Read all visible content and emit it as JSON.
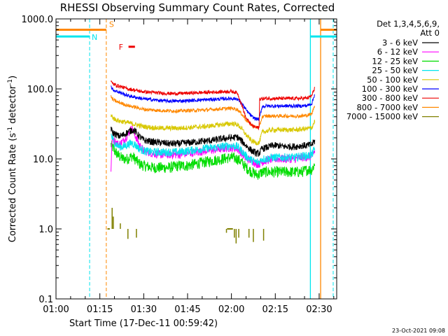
{
  "chart_data": {
    "type": "line",
    "title": "RHESSI Observing Summary Count Rates, Corrected",
    "xlabel": "Start Time (17-Dec-11 00:59:42)",
    "ylabel_main": "Corrected Count Rate (s",
    "ylabel_sup1": "-1",
    "ylabel_mid": " detector",
    "ylabel_sup2": "-1",
    "ylabel_end": ")",
    "x_unit": "minutes after 01:00",
    "xlim": [
      0,
      96
    ],
    "ylim": [
      0.1,
      1000
    ],
    "y_scale": "log",
    "x_ticks": [
      {
        "value": 0,
        "label": "01:00"
      },
      {
        "value": 15,
        "label": "01:15"
      },
      {
        "value": 30,
        "label": "01:30"
      },
      {
        "value": 45,
        "label": "01:45"
      },
      {
        "value": 60,
        "label": "02:00"
      },
      {
        "value": 75,
        "label": "02:15"
      },
      {
        "value": 90,
        "label": "02:30"
      }
    ],
    "y_ticks": [
      {
        "value": 0.1,
        "label": "0.1"
      },
      {
        "value": 1,
        "label": "1.0"
      },
      {
        "value": 10,
        "label": "10.0"
      },
      {
        "value": 100,
        "label": "100.0"
      },
      {
        "value": 1000,
        "label": "1000.0"
      }
    ],
    "legend": {
      "placement": "right",
      "header1": "Det 1,3,4,5,6,9,",
      "header2": "Att 0",
      "entries": [
        {
          "label": "3 - 6 keV",
          "color": "#000000"
        },
        {
          "label": "6 - 12 keV",
          "color": "#ff00ff"
        },
        {
          "label": "12 - 25 keV",
          "color": "#00dd00"
        },
        {
          "label": "25 - 50 keV",
          "color": "#00e5ee"
        },
        {
          "label": "50 - 100 keV",
          "color": "#d8c800"
        },
        {
          "label": "100 - 300 keV",
          "color": "#0000ff"
        },
        {
          "label": "300 - 800 keV",
          "color": "#ee0000"
        },
        {
          "label": "800 - 7000 keV",
          "color": "#ff8800"
        },
        {
          "label": "7000 - 15000 keV",
          "color": "#808000"
        }
      ]
    },
    "series": [
      {
        "name": "3 - 6 keV",
        "color": "#000000",
        "noise": 0.05,
        "x": [
          18.8,
          19.2,
          20,
          21.5,
          23,
          24.5,
          26,
          27,
          28.5,
          30,
          33,
          36,
          39,
          42,
          45,
          48,
          51,
          54,
          57,
          60,
          62,
          63.5,
          65,
          67,
          68.5,
          69.5,
          70.5,
          72,
          74,
          76,
          78,
          80,
          82,
          84,
          86,
          87.5,
          88.5
        ],
        "y": [
          28,
          24,
          23,
          21,
          22,
          24,
          26,
          25,
          21,
          18.5,
          17.5,
          17,
          16.5,
          16.5,
          17,
          17.5,
          18,
          18.5,
          19.5,
          20,
          20.5,
          18,
          15.5,
          13,
          12,
          12,
          14,
          14.5,
          15.5,
          15.5,
          15,
          15,
          15,
          15.5,
          15.5,
          16,
          18
        ]
      },
      {
        "name": "6 - 12 keV",
        "color": "#ff00ff",
        "noise": 0.06,
        "x": [
          18.8,
          19.2,
          20,
          21.5,
          23,
          24.5,
          26,
          27,
          28.5,
          30,
          33,
          36,
          39,
          42,
          45,
          48,
          51,
          54,
          57,
          60,
          62,
          63.5,
          65,
          67,
          68.5,
          69.5,
          70.5,
          72,
          74,
          76,
          78,
          80,
          82,
          84,
          86,
          87.5,
          88.5
        ],
        "y": [
          7,
          20,
          18,
          16,
          18,
          22,
          28,
          22,
          16,
          13,
          12,
          11.5,
          11.5,
          11.5,
          12,
          12.5,
          13,
          13.5,
          14,
          14.5,
          14,
          12,
          10,
          9.5,
          8.5,
          8.5,
          9,
          9.5,
          10,
          10,
          10,
          10,
          10,
          10.5,
          10.5,
          11,
          13
        ]
      },
      {
        "name": "12 - 25 keV",
        "color": "#00dd00",
        "noise": 0.08,
        "x": [
          18.8,
          19.2,
          20,
          21.5,
          23,
          24.5,
          26,
          27,
          28.5,
          30,
          33,
          36,
          39,
          42,
          45,
          48,
          51,
          54,
          57,
          60,
          62,
          63.5,
          65,
          67,
          68.5,
          69.5,
          70.5,
          72,
          74,
          76,
          78,
          80,
          82,
          84,
          86,
          87.5,
          88.5
        ],
        "y": [
          16,
          15,
          13,
          11,
          10,
          10,
          11,
          10,
          8.5,
          8,
          7.5,
          7.5,
          7.5,
          8,
          8,
          8.5,
          9,
          9.5,
          10,
          10.5,
          10,
          9,
          7.5,
          6.5,
          6,
          6,
          6.5,
          6.5,
          6.5,
          6.5,
          6.5,
          6.5,
          6.5,
          6.5,
          7,
          7,
          8.5
        ]
      },
      {
        "name": "25 - 50 keV",
        "color": "#00e5ee",
        "noise": 0.06,
        "x": [
          18.8,
          19.2,
          20,
          21.5,
          23,
          24.5,
          26,
          27,
          28.5,
          30,
          33,
          36,
          39,
          42,
          45,
          48,
          51,
          54,
          57,
          60,
          62,
          63.5,
          65,
          67,
          68.5,
          69.5,
          70.5,
          72,
          74,
          76,
          78,
          80,
          82,
          84,
          86,
          87.5,
          88.5
        ],
        "y": [
          22,
          20,
          17,
          15,
          15,
          16,
          17,
          16,
          14,
          13,
          12.5,
          12.5,
          12.5,
          12.5,
          13,
          13.5,
          14,
          14.5,
          15,
          15.5,
          15,
          13,
          11,
          9.5,
          9,
          9,
          10,
          10,
          10.5,
          10.5,
          10.5,
          10.5,
          10.5,
          11,
          11,
          11.5,
          14
        ]
      },
      {
        "name": "50 - 100 keV",
        "color": "#d8c800",
        "noise": 0.035,
        "x": [
          18.8,
          19.2,
          20,
          21.5,
          23,
          24.5,
          26,
          27,
          28.5,
          30,
          33,
          36,
          39,
          42,
          45,
          48,
          51,
          54,
          57,
          60,
          62,
          63.5,
          65,
          67,
          68.5,
          69.5,
          70.5,
          72,
          74,
          76,
          78,
          80,
          82,
          84,
          86,
          87.5,
          88.5
        ],
        "y": [
          42,
          40,
          37,
          35,
          34,
          33,
          32,
          31,
          30,
          29,
          28,
          27.5,
          27.5,
          27.5,
          28,
          28.5,
          29,
          30,
          31,
          32,
          31,
          27,
          22,
          18,
          17,
          17,
          24,
          25,
          26,
          26,
          26,
          26,
          26,
          26.5,
          27,
          28,
          35
        ]
      },
      {
        "name": "100 - 300 keV",
        "color": "#0000ff",
        "noise": 0.025,
        "x": [
          18.8,
          19.2,
          20,
          21.5,
          23,
          24.5,
          26,
          27,
          28.5,
          30,
          33,
          36,
          39,
          42,
          45,
          48,
          51,
          54,
          57,
          60,
          62,
          63.5,
          65,
          67,
          68.5,
          69.5,
          70.5,
          72,
          74,
          76,
          78,
          80,
          82,
          84,
          86,
          87.5,
          88.5
        ],
        "y": [
          110,
          100,
          95,
          90,
          85,
          80,
          78,
          76,
          74,
          72,
          70,
          68,
          67,
          67,
          68,
          69,
          70,
          71,
          72,
          73,
          72,
          62,
          50,
          40,
          37,
          37,
          56,
          57,
          57,
          57,
          57,
          57,
          57,
          57,
          58,
          62,
          85
        ]
      },
      {
        "name": "300 - 800 keV",
        "color": "#ee0000",
        "noise": 0.025,
        "x": [
          18.8,
          19.2,
          20,
          21.5,
          23,
          24.5,
          26,
          27,
          28.5,
          30,
          33,
          36,
          39,
          42,
          45,
          48,
          51,
          54,
          57,
          60,
          62,
          63.5,
          65,
          67,
          68.5,
          69.5,
          69.6,
          72,
          74,
          76,
          78,
          80,
          82,
          84,
          86,
          87.5,
          88.5
        ],
        "y": [
          130,
          120,
          115,
          110,
          105,
          100,
          98,
          96,
          93,
          91,
          89,
          87,
          86,
          86,
          87,
          88,
          89,
          90,
          91,
          92,
          88,
          60,
          38,
          30,
          28,
          28,
          72,
          73,
          73,
          73,
          73,
          73,
          73,
          73,
          74,
          80,
          105
        ]
      },
      {
        "name": "800 - 7000 keV",
        "color": "#ff8800",
        "noise": 0.025,
        "x": [
          18.8,
          19.2,
          20,
          21.5,
          23,
          24.5,
          26,
          27,
          28.5,
          30,
          33,
          36,
          39,
          42,
          45,
          48,
          51,
          54,
          57,
          60,
          62,
          63.5,
          65,
          67,
          68.5,
          69.5,
          70.5,
          72,
          74,
          76,
          78,
          80,
          82,
          84,
          86,
          87.5,
          88.5
        ],
        "y": [
          78,
          72,
          68,
          64,
          61,
          58,
          56,
          55,
          53,
          51,
          50,
          49,
          48.5,
          48.5,
          49,
          49.5,
          50,
          51,
          52,
          53,
          51,
          44,
          36,
          30,
          28,
          28,
          40,
          41,
          41,
          41,
          41,
          41,
          41,
          41,
          42,
          44,
          60
        ]
      }
    ],
    "high_energy_spikes": {
      "name": "7000 - 15000 keV",
      "color": "#808000",
      "baseline": 1.0,
      "spikes": [
        {
          "x": 19.2,
          "top": 2.0
        },
        {
          "x": 19.6,
          "top": 1.5
        },
        {
          "x": 22.0,
          "top": 1.2
        },
        {
          "x": 24.6,
          "top": 0.72
        },
        {
          "x": 27.5,
          "top": 0.75
        },
        {
          "x": 58.3,
          "top": 0.88
        },
        {
          "x": 61.0,
          "top": 0.75
        },
        {
          "x": 61.6,
          "top": 0.62
        },
        {
          "x": 62.5,
          "top": 0.75
        },
        {
          "x": 66.0,
          "top": 0.75
        },
        {
          "x": 67.5,
          "top": 0.65
        },
        {
          "x": 71.0,
          "top": 0.68
        }
      ],
      "blocks": [
        {
          "x0": 17.6,
          "x1": 18.4,
          "level": 1.0
        },
        {
          "x0": 58.5,
          "x1": 60.5,
          "level": 1.0
        }
      ]
    },
    "overlays": {
      "n_label": "N",
      "s_label": "S",
      "f_label": "F",
      "night_segments": [
        {
          "x0": 0,
          "x1": 11.5,
          "level": 560
        },
        {
          "x0": 87.0,
          "x1": 96,
          "level": 560
        }
      ],
      "saa_segments": [
        {
          "x0": 0,
          "x1": 17.2,
          "level": 700
        },
        {
          "x0": 90.5,
          "x1": 96,
          "level": 700
        }
      ],
      "flare_segment": {
        "x0": 24.8,
        "x1": 27.0,
        "level": 400
      },
      "cyan_solid_lines": [
        87.0
      ],
      "cyan_dashed_lines": [
        11.5,
        94.8
      ],
      "orange_dashed_lines": [
        17.2
      ],
      "orange_solid_lines": [
        90.5
      ]
    },
    "timestamp": "23-Oct-2021 09:08"
  }
}
